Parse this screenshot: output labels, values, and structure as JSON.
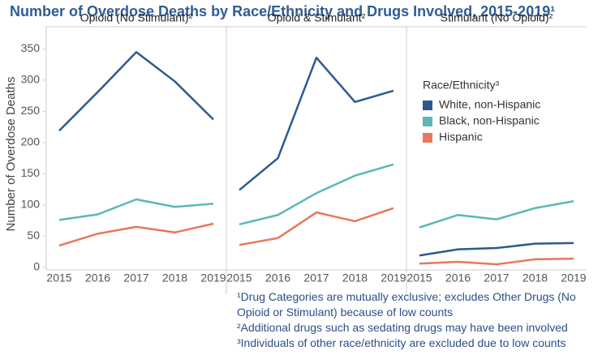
{
  "title": "Number of Overdose Deaths by Race/Ethnicity and Drugs Involved, 2015-2019¹",
  "y_label": "Number of Overdose Deaths",
  "legend_title": "Race/Ethnicity³",
  "footnotes": [
    "¹Drug Categories are mutually exclusive; excludes Other Drugs (No Opioid or Stimulant) because of low counts",
    "²Additional drugs such as sedating drugs may have been involved",
    "³Individuals of other race/ethnicity are excluded due to low counts"
  ],
  "chart_data": [
    {
      "type": "line",
      "title": "Opioid (No Stimulant)²",
      "x": [
        2015,
        2016,
        2017,
        2018,
        2019
      ],
      "series": [
        {
          "name": "White, non-Hispanic",
          "color": "#2c5a8f",
          "values": [
            219,
            281,
            345,
            298,
            237
          ]
        },
        {
          "name": "Black, non-Hispanic",
          "color": "#5ab8b5",
          "values": [
            76,
            85,
            109,
            97,
            102
          ]
        },
        {
          "name": "Hispanic",
          "color": "#e8785a",
          "values": [
            35,
            54,
            65,
            56,
            70
          ]
        }
      ],
      "ylim": [
        -4,
        357
      ],
      "yticks": [
        0,
        50,
        100,
        150,
        200,
        250,
        300,
        350
      ]
    },
    {
      "type": "line",
      "title": "Opioid & Stimulant²",
      "x": [
        2015,
        2016,
        2017,
        2018,
        2019
      ],
      "series": [
        {
          "name": "White, non-Hispanic",
          "color": "#2c5a8f",
          "values": [
            124,
            175,
            336,
            265,
            283
          ]
        },
        {
          "name": "Black, non-Hispanic",
          "color": "#5ab8b5",
          "values": [
            69,
            84,
            119,
            147,
            165
          ]
        },
        {
          "name": "Hispanic",
          "color": "#e8785a",
          "values": [
            36,
            47,
            88,
            74,
            95
          ]
        }
      ],
      "ylim": [
        -4,
        357
      ],
      "yticks": [
        0,
        50,
        100,
        150,
        200,
        250,
        300,
        350
      ]
    },
    {
      "type": "line",
      "title": "Stimulant (No Opioid)²",
      "x": [
        2015,
        2016,
        2017,
        2018,
        2019
      ],
      "series": [
        {
          "name": "White, non-Hispanic",
          "color": "#2c5a8f",
          "values": [
            19,
            29,
            31,
            38,
            39
          ]
        },
        {
          "name": "Black, non-Hispanic",
          "color": "#5ab8b5",
          "values": [
            64,
            84,
            77,
            95,
            106
          ]
        },
        {
          "name": "Hispanic",
          "color": "#e8785a",
          "values": [
            6,
            9,
            5,
            13,
            14
          ]
        }
      ],
      "ylim": [
        -4,
        357
      ],
      "yticks": [
        0,
        50,
        100,
        150,
        200,
        250,
        300,
        350
      ]
    }
  ]
}
